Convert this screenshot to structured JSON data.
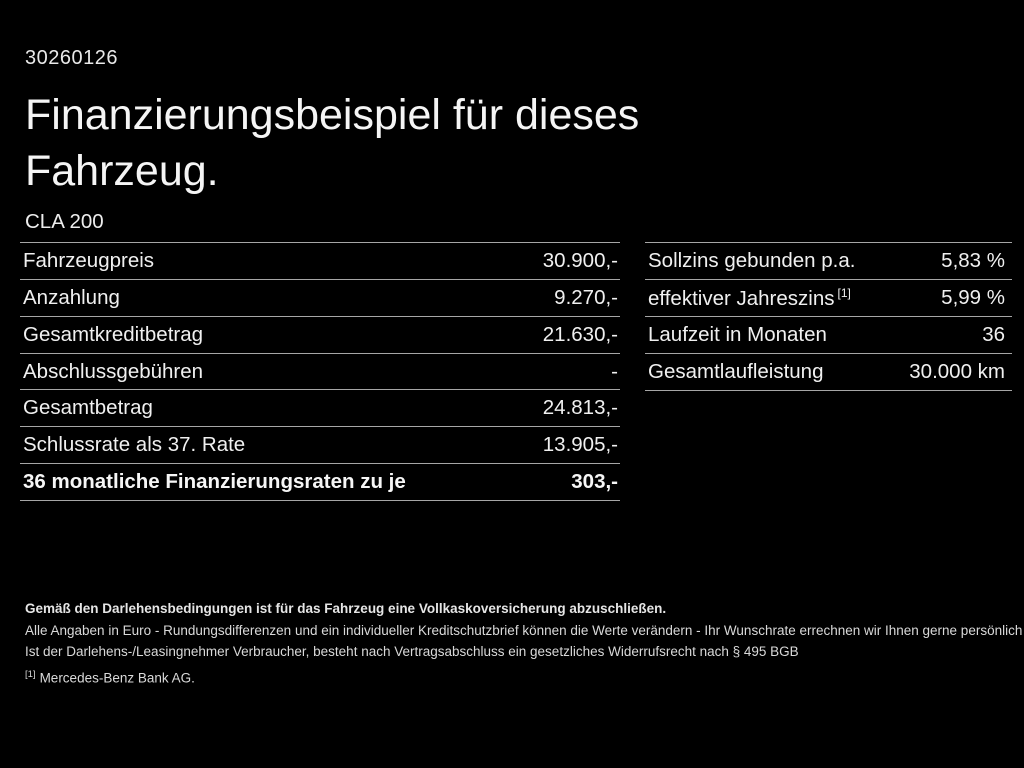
{
  "page": {
    "doc_number": "30260126",
    "title_line1": "Finanzierungsbeispiel für dieses",
    "title_line2": "Fahrzeug.",
    "model": "CLA 200"
  },
  "tables": {
    "left": {
      "rows": [
        {
          "label": "Fahrzeugpreis",
          "value": "30.900,-"
        },
        {
          "label": "Anzahlung",
          "value": "9.270,-"
        },
        {
          "label": "Gesamtkreditbetrag",
          "value": "21.630,-"
        },
        {
          "label": "Abschlussgebühren",
          "value": "-"
        },
        {
          "label": "Gesamtbetrag",
          "value": "24.813,-"
        },
        {
          "label": "Schlussrate als 37. Rate",
          "value": "13.905,-"
        },
        {
          "label": "36 monatliche Finanzierungsraten zu je",
          "value": "303,-"
        }
      ]
    },
    "right": {
      "rows": [
        {
          "label": "Sollzins gebunden p.a.",
          "value": "5,83 %"
        },
        {
          "label": "effektiver Jahreszins",
          "sup": "[1]",
          "value": "5,99 %"
        },
        {
          "label": "Laufzeit in Monaten",
          "value": "36"
        },
        {
          "label": "Gesamtlaufleistung",
          "value": "30.000 km"
        }
      ]
    }
  },
  "footer": {
    "line1": "Gemäß den Darlehensbedingungen ist für das Fahrzeug eine Vollkaskoversicherung abzuschließen.",
    "line2": "Alle Angaben in Euro - Rundungsdifferenzen und ein individueller Kreditschutzbrief können die Werte verändern - Ihr Wunschrate errechnen wir Ihnen gerne persönlich",
    "line3": "Ist der Darlehens-/Leasingnehmer Verbraucher, besteht nach Vertragsabschluss ein gesetzliches Widerrufsrecht nach § 495 BGB",
    "footnote_marker": "[1]",
    "footnote_text": "Mercedes-Benz Bank AG."
  },
  "colors": {
    "background": "#000000",
    "text": "#f2f2f2",
    "divider": "#a6a6a6"
  }
}
